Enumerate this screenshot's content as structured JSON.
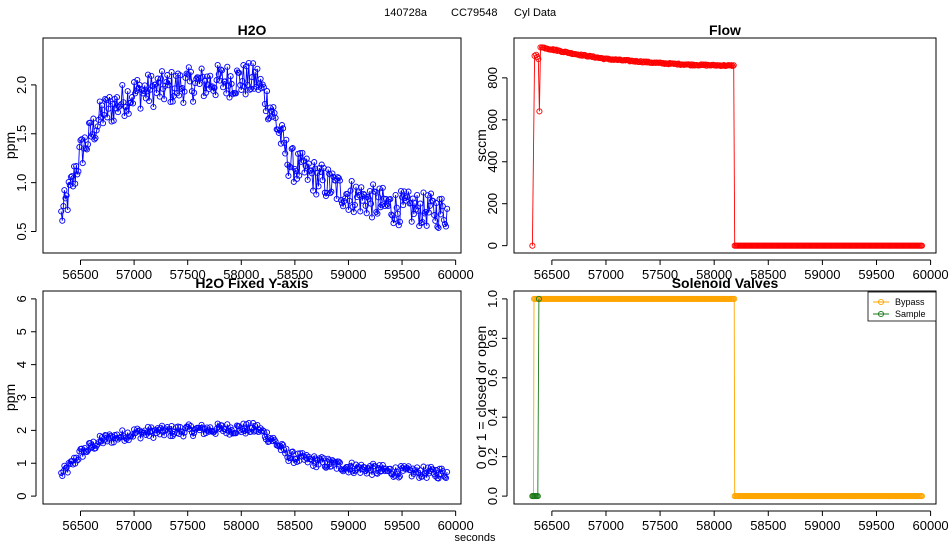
{
  "header": {
    "run_id": "140728a",
    "cylinder": "CC79548",
    "label": "Cyl Data"
  },
  "xlabel": "seconds",
  "chart_data": [
    {
      "id": "h2o",
      "type": "line",
      "title": "H2O",
      "xlabel": "",
      "ylabel": "ppm",
      "xlim": [
        56150,
        60050
      ],
      "ylim": [
        0.28,
        2.48
      ],
      "xticks": [
        56500,
        57000,
        57500,
        58000,
        58500,
        59000,
        59500,
        60000
      ],
      "yticks": [
        0.5,
        1.0,
        1.5,
        2.0
      ],
      "ytick_labels": [
        "0.5",
        "1.0",
        "1.5",
        "2.0"
      ],
      "series": [
        {
          "name": "H2O",
          "color": "#0000ff",
          "marker": "circle-open",
          "x_start": 56320,
          "x_end": 59920,
          "profile_x": [
            56320,
            56400,
            56500,
            56700,
            57000,
            57500,
            57900,
            58150,
            58300,
            58450,
            58700,
            59000,
            59400,
            59920
          ],
          "profile_y": [
            0.65,
            0.9,
            1.3,
            1.7,
            1.92,
            2.0,
            2.05,
            2.05,
            1.7,
            1.2,
            1.05,
            0.88,
            0.75,
            0.7
          ],
          "noise": 0.18
        }
      ]
    },
    {
      "id": "flow",
      "type": "line",
      "title": "Flow",
      "xlabel": "",
      "ylabel": "sccm",
      "xlim": [
        56150,
        60050
      ],
      "ylim": [
        -35,
        990
      ],
      "xticks": [
        56500,
        57000,
        57500,
        58000,
        58500,
        59000,
        59500,
        60000
      ],
      "yticks": [
        0,
        200,
        400,
        600,
        800
      ],
      "ytick_labels": [
        "0",
        "200",
        "400",
        "600",
        "800"
      ],
      "series": [
        {
          "name": "Flow",
          "color": "#ff0000",
          "marker": "circle-open",
          "start_points": [
            [
              56320,
              0
            ],
            [
              56340,
              905
            ],
            [
              56355,
              910
            ],
            [
              56365,
              900
            ],
            [
              56375,
              890
            ],
            [
              56385,
              640
            ],
            [
              56395,
              945
            ],
            [
              56410,
              945
            ]
          ],
          "decay_x": [
            56410,
            56700,
            57000,
            57500,
            57800,
            58180
          ],
          "decay_y": [
            945,
            915,
            890,
            870,
            862,
            858
          ],
          "drop_x": 58190,
          "x_end": 59920,
          "off_value": 0
        }
      ]
    },
    {
      "id": "h2o-fixed",
      "type": "line",
      "title": "H2O Fixed Y-axis",
      "xlabel": "",
      "ylabel": "ppm",
      "xlim": [
        56150,
        60050
      ],
      "ylim": [
        -0.24,
        6.24
      ],
      "xticks": [
        56500,
        57000,
        57500,
        58000,
        58500,
        59000,
        59500,
        60000
      ],
      "yticks": [
        0,
        1,
        2,
        3,
        4,
        5,
        6
      ],
      "ytick_labels": [
        "0",
        "1",
        "2",
        "3",
        "4",
        "5",
        "6"
      ],
      "series": [
        {
          "name": "H2O",
          "color": "#0000ff",
          "marker": "circle-open",
          "same_as": "h2o"
        }
      ]
    },
    {
      "id": "valves",
      "type": "line",
      "title": "Solenoid Valves",
      "xlabel": "",
      "ylabel": "0 or 1 = closed or open",
      "xlim": [
        56150,
        60050
      ],
      "ylim": [
        -0.04,
        1.04
      ],
      "xticks": [
        56500,
        57000,
        57500,
        58000,
        58500,
        59000,
        59500,
        60000
      ],
      "yticks": [
        0.0,
        0.2,
        0.4,
        0.6,
        0.8,
        1.0
      ],
      "ytick_labels": [
        "0.0",
        "0.2",
        "0.4",
        "0.6",
        "0.8",
        "1.0"
      ],
      "series": [
        {
          "name": "Bypass",
          "color": "#ffa500",
          "marker": "circle-open",
          "segments": [
            {
              "x0": 56320,
              "x1": 56330,
              "y": 0
            },
            {
              "x0": 56335,
              "x1": 58185,
              "y": 1
            },
            {
              "x0": 58190,
              "x1": 59920,
              "y": 0
            }
          ]
        },
        {
          "name": "Sample",
          "color": "#1a7a1a",
          "marker": "circle-open",
          "segments": [
            {
              "x0": 56320,
              "x1": 56375,
              "y": 0
            },
            {
              "x0": 56380,
              "x1": 56380,
              "y": 1
            }
          ]
        }
      ],
      "legend": {
        "position": "top-right",
        "entries": [
          "Bypass",
          "Sample"
        ]
      }
    }
  ]
}
